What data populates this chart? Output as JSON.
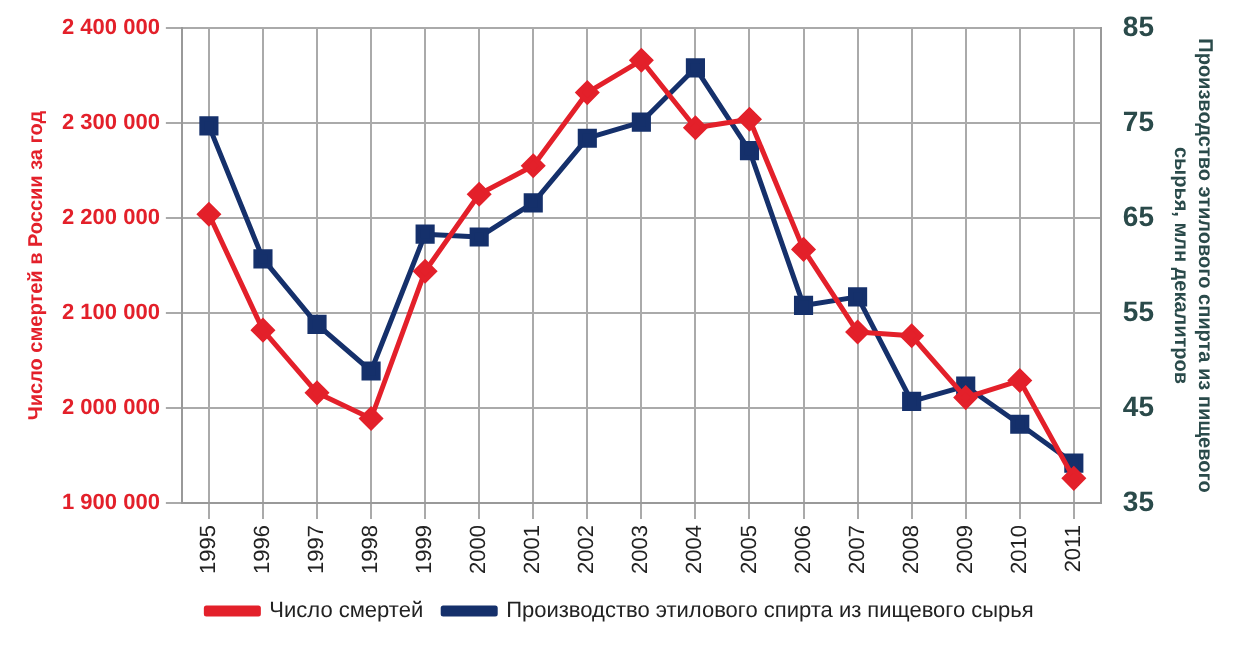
{
  "chart_data": {
    "type": "line",
    "categories": [
      "1995",
      "1996",
      "1997",
      "1998",
      "1999",
      "2000",
      "2001",
      "2002",
      "2003",
      "2004",
      "2005",
      "2006",
      "2007",
      "2008",
      "2009",
      "2010",
      "2011"
    ],
    "ylabel": "Число смертей в России за год",
    "y2label": "Производство этилового спирта из пищевого сырья, млн декалитров",
    "series": [
      {
        "name": "Число смертей",
        "color": "#e3202a",
        "marker": "diamond",
        "values": [
          2204000,
          2082000,
          2016000,
          1989000,
          2144000,
          2225000,
          2255000,
          2332000,
          2366000,
          2295000,
          2304000,
          2167000,
          2080000,
          2076000,
          2011000,
          2029000,
          1926000
        ]
      },
      {
        "name": "Производство этилового спирта из пищевого сырья",
        "color": "#15306b",
        "marker": "square",
        "axis": "y2",
        "values": [
          74.7,
          60.7,
          53.8,
          48.9,
          63.3,
          63.0,
          66.6,
          73.4,
          75.1,
          80.8,
          72.1,
          55.8,
          56.7,
          45.7,
          47.3,
          43.3,
          39.2
        ]
      }
    ],
    "ylim": [
      1900000,
      2400000
    ],
    "yticks": [
      {
        "value": 1900000,
        "label": "1 900 000"
      },
      {
        "value": 2000000,
        "label": "2 000 000"
      },
      {
        "value": 2100000,
        "label": "2 100 000"
      },
      {
        "value": 2200000,
        "label": "2 200 000"
      },
      {
        "value": 2300000,
        "label": "2 300 000"
      },
      {
        "value": 2400000,
        "label": "2 400 000"
      }
    ],
    "y2lim": [
      35,
      85
    ],
    "y2ticks": [
      35,
      45,
      55,
      65,
      75,
      85
    ],
    "grid": true,
    "legend": "bottom"
  }
}
